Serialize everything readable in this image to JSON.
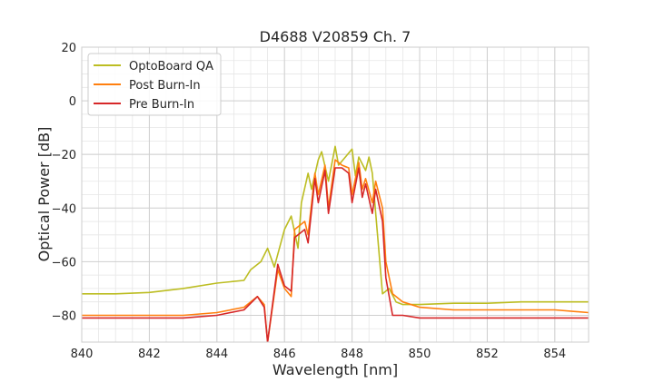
{
  "chart_data": {
    "type": "line",
    "title": "D4688 V20859 Ch. 7",
    "xlabel": "Wavelength [nm]",
    "ylabel": "Optical Power [dB]",
    "xlim": [
      840,
      855
    ],
    "ylim": [
      -90,
      20
    ],
    "xticks": [
      840,
      842,
      844,
      846,
      848,
      850,
      852,
      854
    ],
    "xtick_labels": [
      "840",
      "842",
      "844",
      "846",
      "848",
      "850",
      "852",
      "854"
    ],
    "yticks": [
      20,
      0,
      -20,
      -40,
      -60,
      -80
    ],
    "ytick_labels": [
      "20",
      "0",
      "−20",
      "−40",
      "−60",
      "−80"
    ],
    "x_minor_step": 0.5,
    "y_minor_step": 5,
    "grid": true,
    "legend_position": "upper-left",
    "colors": {
      "OptoBoard QA": "#bcbd22",
      "Post Burn-In": "#ff7f0e",
      "Pre Burn-In": "#d62728"
    },
    "series": [
      {
        "name": "OptoBoard QA",
        "x": [
          840.0,
          841.0,
          842.0,
          843.0,
          844.0,
          844.8,
          845.0,
          845.3,
          845.5,
          845.7,
          846.0,
          846.2,
          846.4,
          846.5,
          846.7,
          846.8,
          847.0,
          847.1,
          847.3,
          847.5,
          847.6,
          847.8,
          848.0,
          848.1,
          848.2,
          848.4,
          848.5,
          848.6,
          848.9,
          849.1,
          849.3,
          849.5,
          850.0,
          851.0,
          852.0,
          853.0,
          854.0,
          855.0
        ],
        "y": [
          -72,
          -72,
          -71.5,
          -70,
          -68,
          -67,
          -63,
          -60,
          -55,
          -62,
          -48,
          -43,
          -55,
          -38,
          -27,
          -33,
          -22,
          -19,
          -30,
          -17,
          -24,
          -21,
          -18,
          -28,
          -21,
          -26,
          -21,
          -27,
          -72,
          -70,
          -75,
          -76,
          -76,
          -75.5,
          -75.5,
          -75,
          -75,
          -75
        ]
      },
      {
        "name": "Post Burn-In",
        "x": [
          840.0,
          841.0,
          842.0,
          843.0,
          844.0,
          844.8,
          845.2,
          845.4,
          845.5,
          845.8,
          846.0,
          846.2,
          846.3,
          846.6,
          846.7,
          846.9,
          847.0,
          847.2,
          847.3,
          847.5,
          847.7,
          847.9,
          848.0,
          848.2,
          848.3,
          848.4,
          848.6,
          848.7,
          848.9,
          849.0,
          849.2,
          849.5,
          850.0,
          851.0,
          852.0,
          853.0,
          854.0,
          855.0
        ],
        "y": [
          -80,
          -80,
          -80,
          -80,
          -79,
          -77,
          -73,
          -76,
          -90,
          -63,
          -70,
          -73,
          -48,
          -45,
          -50,
          -27,
          -35,
          -24,
          -40,
          -22,
          -24,
          -25,
          -35,
          -23,
          -33,
          -29,
          -38,
          -30,
          -40,
          -60,
          -72,
          -75,
          -77,
          -78,
          -78,
          -78,
          -78,
          -79
        ]
      },
      {
        "name": "Pre Burn-In",
        "x": [
          840.0,
          841.0,
          842.0,
          843.0,
          844.0,
          844.8,
          845.2,
          845.4,
          845.5,
          845.8,
          846.0,
          846.2,
          846.3,
          846.6,
          846.7,
          846.9,
          847.0,
          847.2,
          847.3,
          847.5,
          847.7,
          847.9,
          848.0,
          848.2,
          848.3,
          848.4,
          848.6,
          848.7,
          848.9,
          849.0,
          849.2,
          849.5,
          850.0,
          851.0,
          852.0,
          853.0,
          854.0,
          855.0
        ],
        "y": [
          -81,
          -81,
          -81,
          -81,
          -80,
          -78,
          -73,
          -77,
          -90,
          -61,
          -69,
          -71,
          -51,
          -48,
          -53,
          -29,
          -38,
          -26,
          -42,
          -25,
          -25,
          -27,
          -38,
          -25,
          -36,
          -31,
          -42,
          -33,
          -45,
          -66,
          -80,
          -80,
          -81,
          -81,
          -81,
          -81,
          -81,
          -81
        ]
      }
    ]
  }
}
